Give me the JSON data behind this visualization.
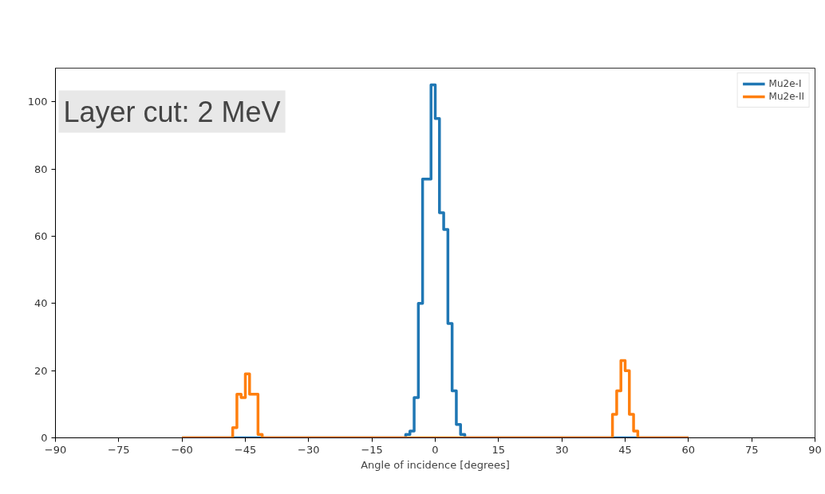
{
  "chart_data": {
    "type": "histogram",
    "xlabel": "Angle of incidence [degrees]",
    "annotations": [
      "Layer cut: 2 MeV"
    ],
    "bins": [
      -60,
      -59,
      -58,
      -57,
      -56,
      -55,
      -54,
      -53,
      -52,
      -51,
      -50,
      -49,
      -48,
      -47,
      -46,
      -45,
      -44,
      -43,
      -42,
      -41,
      -40,
      -39,
      -38,
      -37,
      -36,
      -35,
      -34,
      -33,
      -32,
      -31,
      -30,
      -29,
      -28,
      -27,
      -26,
      -25,
      -24,
      -23,
      -22,
      -21,
      -20,
      -19,
      -18,
      -17,
      -16,
      -15,
      -14,
      -13,
      -12,
      -11,
      -10,
      -9,
      -8,
      -7,
      -6,
      -5,
      -4,
      -3,
      -2,
      -1,
      0,
      1,
      2,
      3,
      4,
      5,
      6,
      7,
      8,
      9,
      10,
      11,
      12,
      13,
      14,
      15,
      16,
      17,
      18,
      19,
      20,
      21,
      22,
      23,
      24,
      25,
      26,
      27,
      28,
      29,
      30,
      31,
      32,
      33,
      34,
      35,
      36,
      37,
      38,
      39,
      40,
      41,
      42,
      43,
      44,
      45,
      46,
      47,
      48,
      49,
      50,
      51,
      52,
      53,
      54,
      55,
      56,
      57,
      58,
      59,
      60
    ],
    "series": [
      {
        "name": "Mu2e-I",
        "color": "#1f77b4",
        "values": [
          0,
          0,
          0,
          0,
          0,
          0,
          0,
          0,
          0,
          0,
          0,
          0,
          0,
          0,
          0,
          0,
          0,
          0,
          0,
          0,
          0,
          0,
          0,
          0,
          0,
          0,
          0,
          0,
          0,
          0,
          0,
          0,
          0,
          0,
          0,
          0,
          0,
          0,
          0,
          0,
          0,
          0,
          0,
          0,
          0,
          0,
          0,
          0,
          0,
          0,
          0,
          0,
          0,
          1,
          2,
          12,
          40,
          77,
          77,
          105,
          95,
          67,
          62,
          34,
          14,
          4,
          1,
          0,
          0,
          0,
          0,
          0,
          0,
          0,
          0,
          0,
          0,
          0,
          0,
          0,
          0,
          0,
          0,
          0,
          0,
          0,
          0,
          0,
          0,
          0,
          0,
          0,
          0,
          0,
          0,
          0,
          0,
          0,
          0,
          0,
          0,
          0,
          0,
          0,
          0,
          0,
          0,
          0,
          0,
          0,
          0,
          0,
          0,
          0,
          0,
          0,
          0,
          0,
          0,
          0
        ]
      },
      {
        "name": "Mu2e-II",
        "color": "#ff7f0e",
        "values": [
          0,
          0,
          0,
          0,
          0,
          0,
          0,
          0,
          0,
          0,
          0,
          0,
          3,
          13,
          12,
          19,
          13,
          13,
          1,
          0,
          0,
          0,
          0,
          0,
          0,
          0,
          0,
          0,
          0,
          0,
          0,
          0,
          0,
          0,
          0,
          0,
          0,
          0,
          0,
          0,
          0,
          0,
          0,
          0,
          0,
          0,
          0,
          0,
          0,
          0,
          0,
          0,
          0,
          0,
          0,
          0,
          0,
          0,
          0,
          0,
          0,
          0,
          0,
          0,
          0,
          0,
          0,
          0,
          0,
          0,
          0,
          0,
          0,
          0,
          0,
          0,
          0,
          0,
          0,
          0,
          0,
          0,
          0,
          0,
          0,
          0,
          0,
          0,
          0,
          0,
          0,
          0,
          0,
          0,
          0,
          0,
          0,
          0,
          0,
          0,
          0,
          0,
          7,
          14,
          23,
          20,
          7,
          2,
          0,
          0,
          0,
          0,
          0,
          0,
          0,
          0,
          0,
          0,
          0,
          0
        ]
      }
    ],
    "xlim": [
      -90,
      90
    ],
    "xticks": [
      {
        "value": -90,
        "label": "−90"
      },
      {
        "value": -75,
        "label": "−75"
      },
      {
        "value": -60,
        "label": "−60"
      },
      {
        "value": -45,
        "label": "−45"
      },
      {
        "value": -30,
        "label": "−30"
      },
      {
        "value": -15,
        "label": "−15"
      },
      0,
      15,
      30,
      45,
      60,
      75,
      90
    ],
    "ylim": [
      0,
      110
    ],
    "yticks": [
      0,
      20,
      40,
      60,
      80,
      100
    ],
    "grid": false,
    "legend": "top right"
  }
}
